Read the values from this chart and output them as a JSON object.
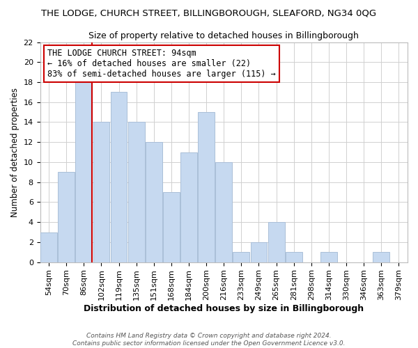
{
  "title": "THE LODGE, CHURCH STREET, BILLINGBOROUGH, SLEAFORD, NG34 0QG",
  "subtitle": "Size of property relative to detached houses in Billingborough",
  "xlabel": "Distribution of detached houses by size in Billingborough",
  "ylabel": "Number of detached properties",
  "footer_line1": "Contains HM Land Registry data © Crown copyright and database right 2024.",
  "footer_line2": "Contains public sector information licensed under the Open Government Licence v3.0.",
  "bar_labels": [
    "54sqm",
    "70sqm",
    "86sqm",
    "102sqm",
    "119sqm",
    "135sqm",
    "151sqm",
    "168sqm",
    "184sqm",
    "200sqm",
    "216sqm",
    "233sqm",
    "249sqm",
    "265sqm",
    "281sqm",
    "298sqm",
    "314sqm",
    "330sqm",
    "346sqm",
    "363sqm",
    "379sqm"
  ],
  "bar_values": [
    3,
    9,
    18,
    14,
    17,
    14,
    12,
    7,
    11,
    15,
    10,
    1,
    2,
    4,
    1,
    0,
    1,
    0,
    0,
    1,
    0
  ],
  "bar_color": "#c6d9f0",
  "bar_edge_color": "#aabfd8",
  "grid_color": "#d0d0d0",
  "ref_line_color": "#cc0000",
  "annotation_title": "THE LODGE CHURCH STREET: 94sqm",
  "annotation_line2": "← 16% of detached houses are smaller (22)",
  "annotation_line3": "83% of semi-detached houses are larger (115) →",
  "annotation_box_color": "#ffffff",
  "annotation_border_color": "#cc0000",
  "ylim": [
    0,
    22
  ],
  "yticks": [
    0,
    2,
    4,
    6,
    8,
    10,
    12,
    14,
    16,
    18,
    20,
    22
  ],
  "title_fontsize": 9.5,
  "subtitle_fontsize": 9.0,
  "xlabel_fontsize": 9.0,
  "ylabel_fontsize": 8.5,
  "tick_fontsize": 8.0,
  "annot_fontsize": 8.5,
  "footer_fontsize": 6.5
}
